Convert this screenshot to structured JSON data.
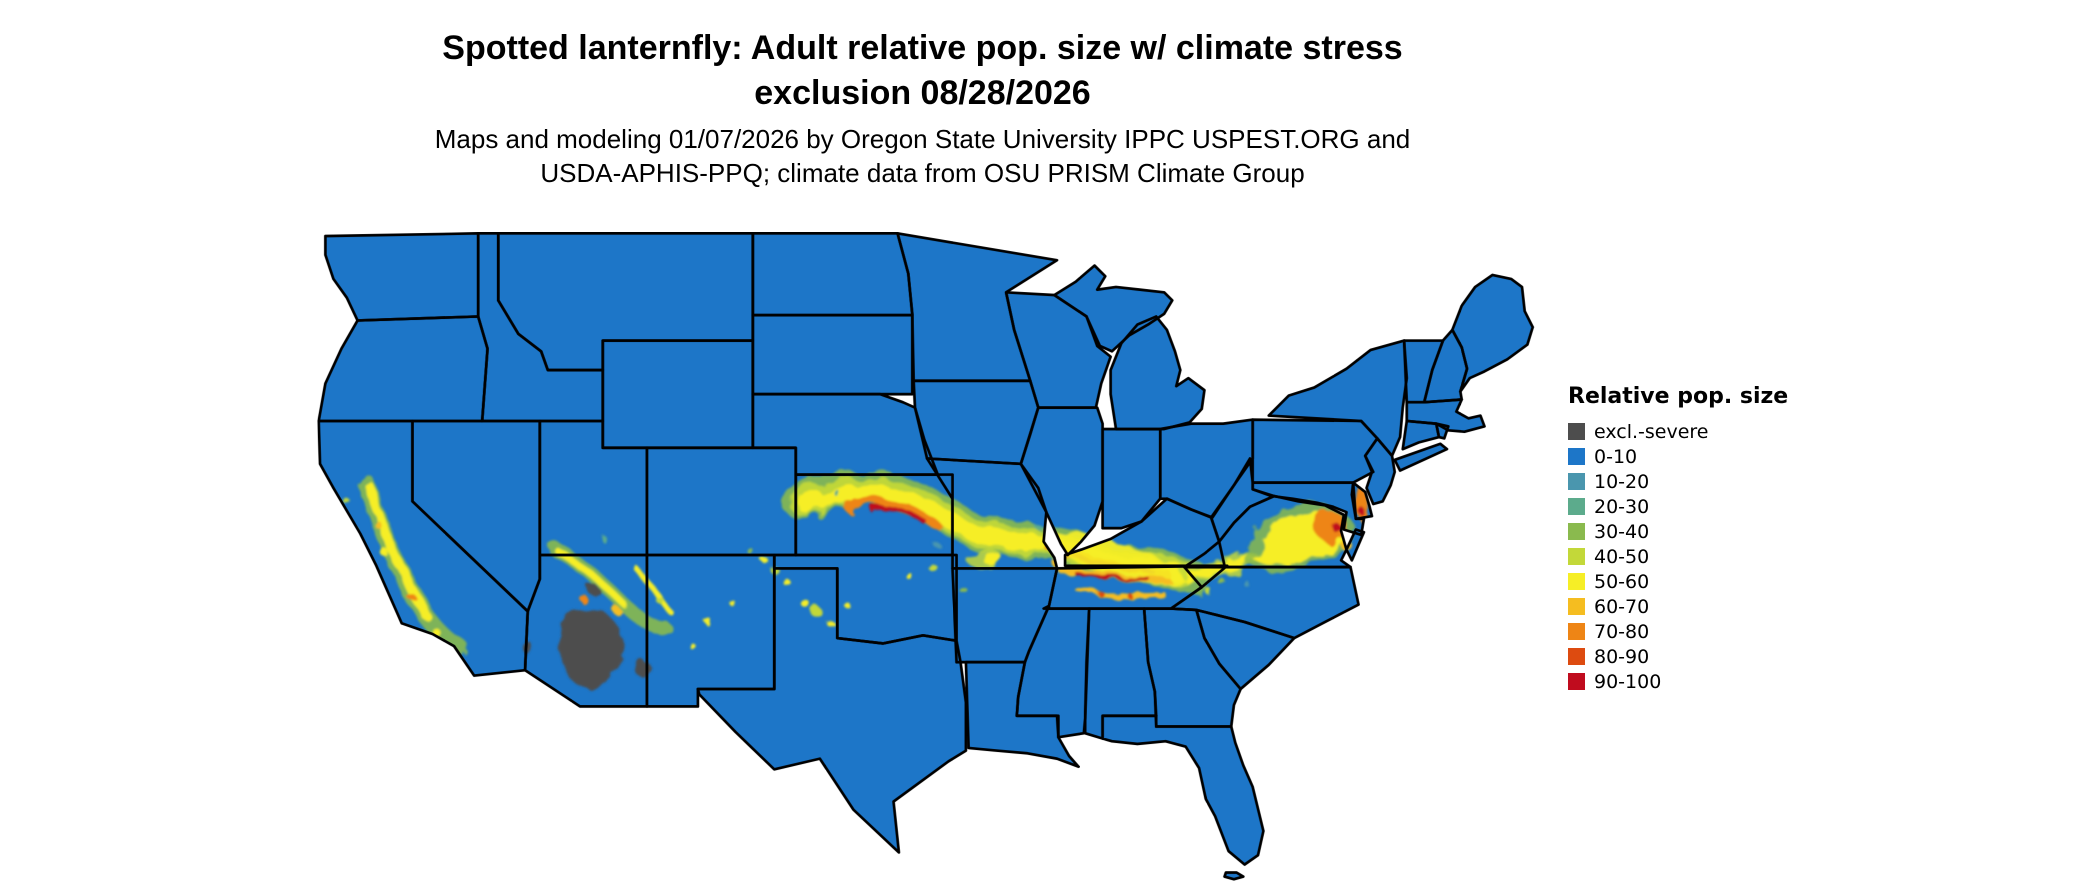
{
  "title": {
    "line1": "Spotted lanternfly: Adult relative pop. size w/ climate stress",
    "line2": "exclusion 08/28/2026"
  },
  "subtitle": {
    "line1": "Maps and modeling 01/07/2026 by Oregon State University IPPC USPEST.ORG and",
    "line2": "USDA-APHIS-PPQ; climate data from OSU PRISM Climate Group"
  },
  "legend": {
    "title": "Relative pop. size",
    "items": [
      {
        "label": "excl.-severe",
        "color": "#4d4d4d"
      },
      {
        "label": "0-10",
        "color": "#1d76c8"
      },
      {
        "label": "10-20",
        "color": "#4a96ae"
      },
      {
        "label": "20-30",
        "color": "#5cab8c"
      },
      {
        "label": "30-40",
        "color": "#8aba4e"
      },
      {
        "label": "40-50",
        "color": "#c3d839"
      },
      {
        "label": "50-60",
        "color": "#f6ee26"
      },
      {
        "label": "60-70",
        "color": "#f5bd20"
      },
      {
        "label": "70-80",
        "color": "#ee8515"
      },
      {
        "label": "80-90",
        "color": "#dd4b10"
      },
      {
        "label": "90-100",
        "color": "#c00c1e"
      }
    ]
  },
  "map": {
    "land_color": "#1d76c8",
    "border_color": "#000000",
    "background_color": "#ffffff"
  }
}
